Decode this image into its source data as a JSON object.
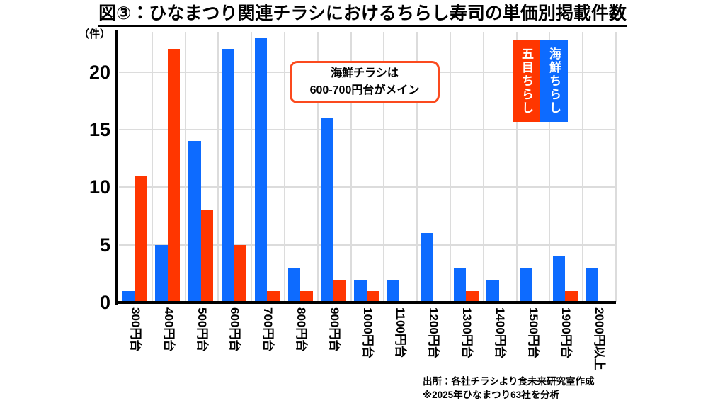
{
  "title": "図③：ひなまつり関連チラシにおけるちらし寿司の単価別掲載件数",
  "y_axis_unit": "（件）",
  "annotation": {
    "line1": "海鮮チラシは",
    "line2": "600-700円台がメイン",
    "border_color": "#fb4a1e"
  },
  "legend": {
    "items": [
      {
        "label": "五目ちらし",
        "color": "#ff3600"
      },
      {
        "label": "海鮮ちらし",
        "color": "#0d6bff"
      }
    ]
  },
  "footer": {
    "line1": "出所：各社チラシより食未来研究室作成",
    "line2": "※2025年ひなまつり63社を分析"
  },
  "colors": {
    "kaisen_blue": "#0d6bff",
    "gomoku_red": "#ff3600",
    "gridline": "#dcdcdc",
    "axis": "#000000"
  },
  "chart_data": {
    "type": "bar",
    "title": "図③：ひなまつり関連チラシにおけるちらし寿司の単価別掲載件数",
    "categories": [
      "300円台",
      "400円台",
      "500円台",
      "600円台",
      "700円台",
      "800円台",
      "900円台",
      "1000円台",
      "1100円台",
      "1200円台",
      "1300円台",
      "1400円台",
      "1500円台",
      "1900円台",
      "2000円以上"
    ],
    "series": [
      {
        "name": "海鮮ちらし",
        "color": "#0d6bff",
        "values": [
          1,
          5,
          14,
          22,
          23,
          3,
          16,
          2,
          2,
          6,
          3,
          2,
          3,
          4,
          3
        ]
      },
      {
        "name": "五目ちらし",
        "color": "#ff3600",
        "values": [
          11,
          22,
          8,
          5,
          1,
          1,
          2,
          1,
          0,
          0,
          1,
          0,
          0,
          1,
          0
        ]
      }
    ],
    "xlabel": "",
    "ylabel": "（件）",
    "yticks": [
      0,
      5,
      10,
      15,
      20
    ],
    "ylim": [
      0,
      23.5
    ],
    "grid": true,
    "legend_position": "top-right",
    "annotation_text": "海鮮チラシは 600-700円台がメイン"
  }
}
